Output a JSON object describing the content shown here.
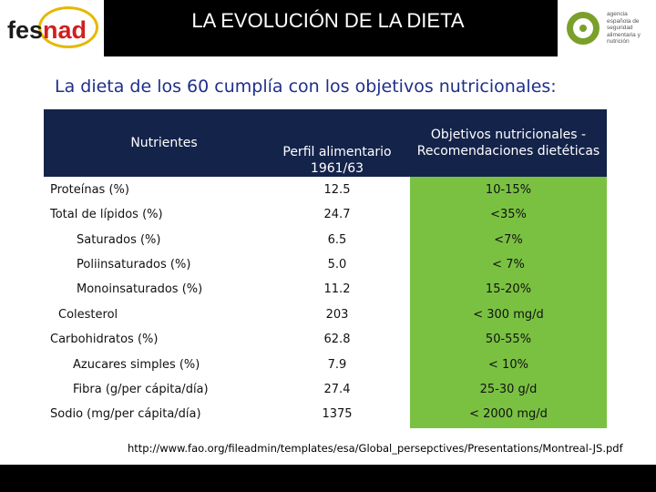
{
  "header": {
    "title": "LA EVOLUCIÓN DE LA DIETA",
    "logo_left": {
      "part1": "fes",
      "part2": "nad"
    },
    "logo_right": {
      "lines": [
        "agencia",
        "española de",
        "seguridad",
        "alimentaria y",
        "nutrición"
      ]
    }
  },
  "subtitle": "La dieta de los 60 cumplía con los objetivos nutricionales:",
  "table": {
    "headers": {
      "col1": "Nutrientes",
      "col2": "Perfil alimentario 1961/63",
      "col3": "Objetivos nutricionales - Recomendaciones dietéticas"
    },
    "rows": [
      {
        "label": "Proteínas (%)",
        "value": "12.5",
        "objective": "10-15%"
      },
      {
        "label": "Total de lípidos (%)",
        "value": "24.7",
        "objective": "<35%"
      },
      {
        "label": "Saturados (%)",
        "value": "6.5",
        "objective": "<7%"
      },
      {
        "label": "Poliinsaturados (%)",
        "value": "5.0",
        "objective": "< 7%"
      },
      {
        "label": "Monoinsaturados (%)",
        "value": "11.2",
        "objective": "15-20%"
      },
      {
        "label": "Colesterol",
        "value": "203",
        "objective": "< 300 mg/d"
      },
      {
        "label": "Carbohidratos (%)",
        "value": "62.8",
        "objective": "50-55%"
      },
      {
        "label": "Azucares simples (%)",
        "value": "7.9",
        "objective": "< 10%"
      },
      {
        "label": "Fibra (g/per cápita/día)",
        "value": "27.4",
        "objective": "25-30 g/d"
      },
      {
        "label": "Sodio (mg/per cápita/día)",
        "value": "1375",
        "objective": "< 2000 mg/d"
      }
    ]
  },
  "source_url": "http://www.fao.org/fileadmin/templates/esa/Global_persepctives/Presentations/Montreal-JS.pdf",
  "colors": {
    "header_bg": "#14234a",
    "objective_bg": "#7ac142",
    "subtitle": "#1f2f8a"
  }
}
